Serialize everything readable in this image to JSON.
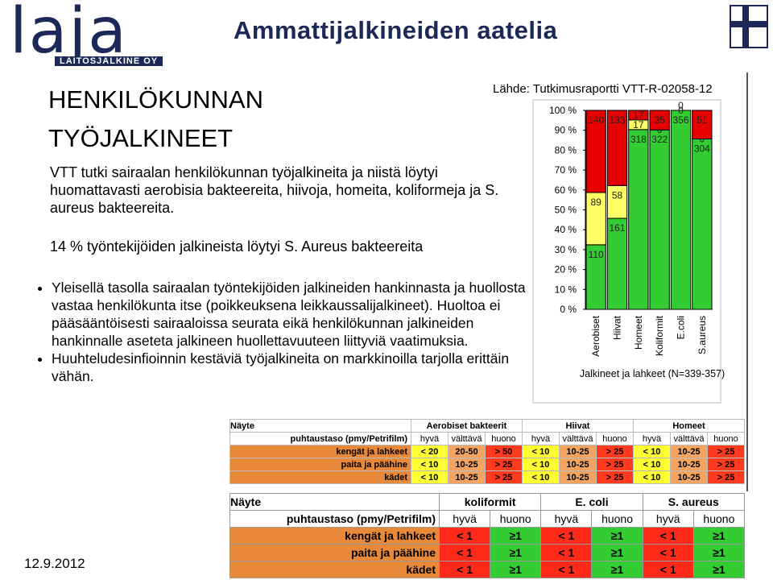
{
  "header": {
    "logo": "laja",
    "logo_subtitle": "LAITOSJALKINE OY",
    "title": "Ammattijalkineiden aatelia"
  },
  "slide": {
    "title": "HENKILÖKUNNAN TYÖJALKINEET",
    "intro": "VTT tutki sairaalan henkilökunnan työjalkineita ja niistä löytyi huomattavasti aerobisia bakteereita, hiivoja, homeita, koliformeja ja S. aureus bakteereita.",
    "highlight": "14 % työntekijöiden jalkineista löytyi S. Aureus bakteereita",
    "bullets": [
      "Yleisellä tasolla sairaalan työntekijöiden jalkineiden hankinnasta ja huollosta vastaa henkilökunta itse (poikkeuksena leikkaussalijalkineet). Huoltoa ei pääsääntöisesti sairaaloissa seurata eikä henkilökunnan jalkineiden hankinnalle aseteta jalkineen huollettavuuteen liittyviä vaatimuksia.",
      "Huuhteludesinfioinnin kestäviä työjalkineita on markkinoilla tarjolla erittäin vähän."
    ],
    "source": "Lähde: Tutkimusraportti VTT-R-02058-12",
    "date": "12.9.2012"
  },
  "chart_data": {
    "type": "bar",
    "stacked": "percent",
    "x_label": "Jalkineet ja lahkeet (N=339-357)",
    "categories": [
      "Aerobiset",
      "Hiivat",
      "Homeet",
      "Koliformit",
      "E.coli",
      "S.aureus"
    ],
    "series": [
      {
        "color": "#33cc33",
        "values": [
          110,
          161,
          318,
          322,
          356,
          304
        ]
      },
      {
        "color": "#ffff66",
        "values": [
          89,
          58,
          17,
          0,
          0,
          0
        ]
      },
      {
        "color": "#e60000",
        "values": [
          140,
          133,
          17,
          35,
          0,
          51
        ]
      }
    ],
    "ylim": [
      0,
      100
    ],
    "yticks": [
      {
        "value": 0,
        "label": "0 %"
      },
      {
        "value": 10,
        "label": "10 %"
      },
      {
        "value": 20,
        "label": "20 %"
      },
      {
        "value": 30,
        "label": "30 %"
      },
      {
        "value": 40,
        "label": "40 %"
      },
      {
        "value": 50,
        "label": "50 %"
      },
      {
        "value": 60,
        "label": "60 %"
      },
      {
        "value": 70,
        "label": "70 %"
      },
      {
        "value": 80,
        "label": "80 %"
      },
      {
        "value": 90,
        "label": "90 %"
      },
      {
        "value": 100,
        "label": "100 %"
      }
    ]
  },
  "tables": [
    {
      "header": [
        "Näyte",
        "Aerobiset bakteerit",
        "Hiivat",
        "Homeet"
      ],
      "subheader": [
        "puhtaustaso (pmy/Petrifilm)",
        "hyvä",
        "välttävä",
        "huono",
        "hyvä",
        "välttävä",
        "huono",
        "hyvä",
        "välttävä",
        "huono"
      ],
      "rows": [
        [
          "kengät ja lahkeet",
          "< 20",
          "20-50",
          "> 50",
          "< 10",
          "10-25",
          "> 25",
          "< 10",
          "10-25",
          "> 25"
        ],
        [
          "paita ja päähine",
          "< 10",
          "10-25",
          "> 25",
          "< 10",
          "10-25",
          "> 25",
          "< 10",
          "10-25",
          "> 25"
        ],
        [
          "kädet",
          "< 10",
          "10-25",
          "> 25",
          "< 10",
          "10-25",
          "> 25",
          "< 10",
          "10-25",
          "> 25"
        ]
      ]
    },
    {
      "header": [
        "Näyte",
        "koliformit",
        "E. coli",
        "S. aureus"
      ],
      "subheader": [
        "puhtaustaso (pmy/Petrifilm)",
        "hyvä",
        "huono",
        "hyvä",
        "huono",
        "hyvä",
        "huono"
      ],
      "rows": [
        [
          "kengät ja lahkeet",
          "< 1",
          "≥1",
          "< 1",
          "≥1",
          "< 1",
          "≥1"
        ],
        [
          "paita ja päähine",
          "< 1",
          "≥1",
          "< 1",
          "≥1",
          "< 1",
          "≥1"
        ],
        [
          "kädet",
          "< 1",
          "≥1",
          "< 1",
          "≥1",
          "< 1",
          "≥1"
        ]
      ]
    }
  ]
}
